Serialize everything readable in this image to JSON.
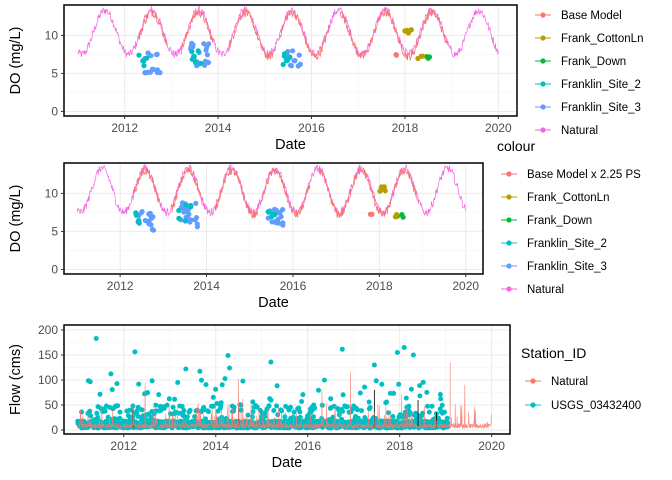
{
  "chart_data": [
    {
      "type": "line",
      "xlabel": "Date",
      "ylabel": "DO (mg/L)",
      "xlim": [
        2010.7,
        2020.4
      ],
      "ylim": [
        -0.6,
        14
      ],
      "x_ticks": [
        "2012",
        "2014",
        "2016",
        "2018",
        "2020"
      ],
      "x_tick_values": [
        2012,
        2014,
        2016,
        2018,
        2020
      ],
      "y_ticks": [
        "0",
        "5",
        "10"
      ],
      "y_tick_values": [
        0,
        5,
        10
      ],
      "grid": true,
      "legend_position": "right",
      "legend_title": "",
      "series": [
        {
          "name": "Base Model",
          "color": "#F8766D",
          "kind": "line"
        },
        {
          "name": "Frank_CottonLn",
          "color": "#B79F00",
          "kind": "points"
        },
        {
          "name": "Frank_Down",
          "color": "#00BA38",
          "kind": "points"
        },
        {
          "name": "Franklin_Site_2",
          "color": "#00BFC4",
          "kind": "points"
        },
        {
          "name": "Franklin_Site_3",
          "color": "#619CFF",
          "kind": "points"
        },
        {
          "name": "Natural",
          "color": "#F564E3",
          "kind": "line"
        }
      ]
    },
    {
      "type": "line",
      "xlabel": "Date",
      "ylabel": "DO (mg/L)",
      "xlim": [
        2010.7,
        2020.4
      ],
      "ylim": [
        -0.6,
        14
      ],
      "x_ticks": [
        "2012",
        "2014",
        "2016",
        "2018",
        "2020"
      ],
      "x_tick_values": [
        2012,
        2014,
        2016,
        2018,
        2020
      ],
      "y_ticks": [
        "0",
        "5",
        "10"
      ],
      "y_tick_values": [
        0,
        5,
        10
      ],
      "grid": true,
      "legend_position": "right",
      "legend_title": "colour",
      "series": [
        {
          "name": "Base Model x 2.25 PS",
          "color": "#F8766D",
          "kind": "line"
        },
        {
          "name": "Frank_CottonLn",
          "color": "#B79F00",
          "kind": "points"
        },
        {
          "name": "Frank_Down",
          "color": "#00BA38",
          "kind": "points"
        },
        {
          "name": "Franklin_Site_2",
          "color": "#00BFC4",
          "kind": "points"
        },
        {
          "name": "Franklin_Site_3",
          "color": "#619CFF",
          "kind": "points"
        },
        {
          "name": "Natural",
          "color": "#F564E3",
          "kind": "line"
        }
      ]
    },
    {
      "type": "line",
      "xlabel": "Date",
      "ylabel": "Flow (cms)",
      "xlim": [
        2010.7,
        2020.4
      ],
      "ylim": [
        -8,
        210
      ],
      "x_ticks": [
        "2012",
        "2014",
        "2016",
        "2018",
        "2020"
      ],
      "x_tick_values": [
        2012,
        2014,
        2016,
        2018,
        2020
      ],
      "y_ticks": [
        "0",
        "50",
        "100",
        "150",
        "200"
      ],
      "y_tick_values": [
        0,
        50,
        100,
        150,
        200
      ],
      "grid": true,
      "legend_position": "right",
      "legend_title": "Station_ID",
      "series": [
        {
          "name": "Natural",
          "color": "#F8766D",
          "kind": "line"
        },
        {
          "name": "USGS_03432400",
          "color": "#00BFC4",
          "kind": "points"
        }
      ]
    }
  ]
}
